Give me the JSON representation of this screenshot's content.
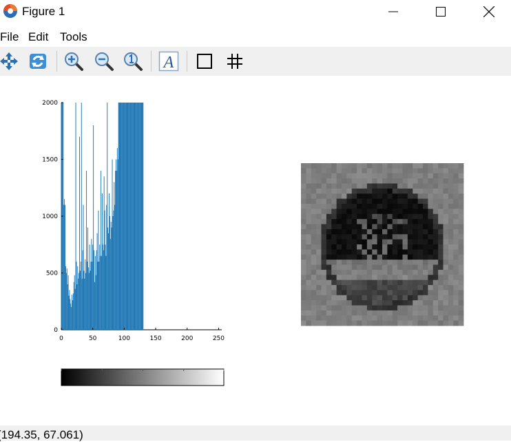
{
  "window": {
    "title": "Figure 1"
  },
  "menu": {
    "items": [
      "File",
      "Edit",
      "Tools"
    ]
  },
  "toolbar": {
    "buttons": [
      "pan",
      "rotate",
      "zoom-in",
      "zoom-out",
      "zoom-reset",
      "insert-text",
      "toggle-axes",
      "toggle-grid"
    ]
  },
  "status": {
    "coordinates": "(194.35, 67.061)"
  },
  "colors": {
    "bar": "#1f77b4",
    "toolbar_bg": "#f0f0f0"
  },
  "chart_data": {
    "type": "bar",
    "x": [
      0,
      1,
      2,
      3,
      4,
      5,
      6,
      7,
      8,
      9,
      10,
      11,
      12,
      13,
      14,
      15,
      16,
      17,
      18,
      19,
      20,
      21,
      22,
      23,
      24,
      25,
      26,
      27,
      28,
      29,
      30,
      31,
      32,
      33,
      34,
      35,
      36,
      37,
      38,
      39,
      40,
      41,
      42,
      43,
      44,
      45,
      46,
      47,
      48,
      49,
      50,
      51,
      52,
      53,
      54,
      55,
      56,
      57,
      58,
      59,
      60,
      61,
      62,
      63,
      64,
      65,
      66,
      67,
      68,
      69,
      70,
      71,
      72,
      73,
      74,
      75,
      76,
      77,
      78,
      79,
      80,
      81,
      82,
      83,
      84,
      85,
      86,
      87,
      88,
      89,
      90,
      91,
      92,
      93,
      94,
      95,
      96,
      97,
      98,
      99,
      100,
      101,
      102,
      103,
      104,
      105,
      106,
      107,
      108,
      109,
      110,
      111,
      112,
      113,
      114,
      115,
      116,
      117,
      118,
      119,
      120,
      121,
      122,
      123,
      124,
      125,
      126,
      127,
      128,
      129,
      130
    ],
    "values": [
      2000,
      2000,
      2000,
      2000,
      1100,
      1150,
      1100,
      560,
      500,
      540,
      400,
      480,
      300,
      350,
      270,
      230,
      200,
      310,
      260,
      320,
      420,
      480,
      360,
      2000,
      600,
      400,
      560,
      450,
      500,
      1700,
      520,
      600,
      2000,
      450,
      700,
      1100,
      520,
      450,
      620,
      500,
      1400,
      600,
      900,
      550,
      500,
      750,
      520,
      600,
      800,
      600,
      750,
      1800,
      700,
      420,
      650,
      480,
      700,
      850,
      600,
      1050,
      600,
      750,
      650,
      1400,
      650,
      1200,
      750,
      700,
      1350,
      1050,
      750,
      650,
      1100,
      2000,
      900,
      850,
      1200,
      1000,
      800,
      950,
      900,
      1500,
      1000,
      1050,
      1300,
      1100,
      1400,
      1500,
      1400,
      1600,
      1500,
      2000,
      2000,
      2000,
      2000,
      2000,
      2000,
      2000,
      2000,
      2000,
      2000,
      2000,
      2000,
      2000,
      2000,
      2000,
      2000,
      2000,
      2000,
      2000,
      2000,
      2000,
      2000,
      2000,
      2000,
      2000,
      2000,
      2000,
      2000,
      2000,
      2000,
      2000,
      2000,
      2000,
      2000,
      2000,
      2000,
      2000,
      2000,
      2000,
      2000
    ],
    "xlim": [
      0,
      255
    ],
    "ylim": [
      0,
      2000
    ],
    "xticks": [
      0,
      50,
      100,
      150,
      200,
      250
    ],
    "yticks": [
      0,
      500,
      1000,
      1500,
      2000
    ],
    "xlabel": "",
    "ylabel": "",
    "title": ""
  },
  "colorbar": {
    "range": [
      0,
      255
    ],
    "ticks": [
      0,
      64,
      128,
      192,
      255
    ]
  }
}
